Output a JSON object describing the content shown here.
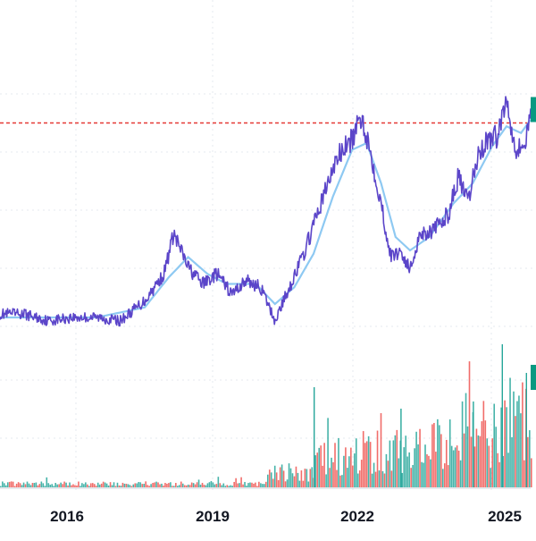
{
  "colors": {
    "price_line": "#5b45c9",
    "moving_average": "#8ec9f2",
    "reference_line": "#e53935",
    "volume_up": "#26a69a",
    "volume_down": "#ef5350",
    "price_tag": "#089981",
    "grid": "#e6e9ef",
    "axis_text": "#131722"
  },
  "chart_data": {
    "type": "line",
    "title": "",
    "xlabel": "",
    "ylabel": "",
    "x_tick_labels": [
      "2016",
      "2019",
      "2022",
      "2025"
    ],
    "x_range": [
      2014.5,
      2025.5
    ],
    "y_range": [
      0,
      100
    ],
    "grid": true,
    "reference_line_value": 82,
    "series": [
      {
        "role": "price",
        "points": [
          [
            2014.5,
            25
          ],
          [
            2015.0,
            25
          ],
          [
            2015.5,
            23
          ],
          [
            2016.0,
            24
          ],
          [
            2016.5,
            24
          ],
          [
            2017.0,
            23
          ],
          [
            2017.5,
            29
          ],
          [
            2017.9,
            37
          ],
          [
            2018.1,
            49
          ],
          [
            2018.4,
            39
          ],
          [
            2018.7,
            34
          ],
          [
            2019.0,
            37
          ],
          [
            2019.3,
            31
          ],
          [
            2019.6,
            35
          ],
          [
            2019.9,
            33
          ],
          [
            2020.2,
            23
          ],
          [
            2020.5,
            33
          ],
          [
            2020.8,
            43
          ],
          [
            2021.2,
            60
          ],
          [
            2021.5,
            72
          ],
          [
            2021.8,
            77
          ],
          [
            2022.0,
            84
          ],
          [
            2022.2,
            72
          ],
          [
            2022.4,
            58
          ],
          [
            2022.6,
            42
          ],
          [
            2022.8,
            44
          ],
          [
            2023.0,
            38
          ],
          [
            2023.2,
            49
          ],
          [
            2023.5,
            50
          ],
          [
            2023.8,
            55
          ],
          [
            2024.0,
            66
          ],
          [
            2024.2,
            58
          ],
          [
            2024.4,
            72
          ],
          [
            2024.6,
            77
          ],
          [
            2024.8,
            78
          ],
          [
            2025.0,
            89
          ],
          [
            2025.2,
            74
          ],
          [
            2025.4,
            76
          ],
          [
            2025.5,
            86
          ]
        ]
      },
      {
        "role": "moving-average",
        "points": [
          [
            2014.5,
            24
          ],
          [
            2015.5,
            24
          ],
          [
            2016.5,
            24
          ],
          [
            2017.5,
            27
          ],
          [
            2018.0,
            36
          ],
          [
            2018.4,
            42
          ],
          [
            2018.8,
            37
          ],
          [
            2019.2,
            34
          ],
          [
            2019.8,
            34
          ],
          [
            2020.2,
            28
          ],
          [
            2020.6,
            33
          ],
          [
            2021.0,
            43
          ],
          [
            2021.4,
            60
          ],
          [
            2021.8,
            74
          ],
          [
            2022.1,
            76
          ],
          [
            2022.4,
            64
          ],
          [
            2022.7,
            48
          ],
          [
            2023.0,
            44
          ],
          [
            2023.4,
            48
          ],
          [
            2023.9,
            58
          ],
          [
            2024.3,
            64
          ],
          [
            2024.7,
            75
          ],
          [
            2025.0,
            81
          ],
          [
            2025.3,
            79
          ],
          [
            2025.5,
            83
          ]
        ]
      }
    ],
    "volume": {
      "note": "volume bars, relative scale 0-100",
      "segments": [
        [
          2014.5,
          2020.0,
          3
        ],
        [
          2020.0,
          2021.0,
          12
        ],
        [
          2021.0,
          2022.0,
          25
        ],
        [
          2022.0,
          2023.0,
          30
        ],
        [
          2023.0,
          2024.0,
          35
        ],
        [
          2024.0,
          2025.0,
          45
        ],
        [
          2025.0,
          2025.5,
          55
        ]
      ],
      "spikes": [
        [
          2021.0,
          70
        ],
        [
          2022.8,
          55
        ],
        [
          2024.3,
          60
        ],
        [
          2024.9,
          100
        ],
        [
          2025.4,
          80
        ]
      ]
    }
  }
}
